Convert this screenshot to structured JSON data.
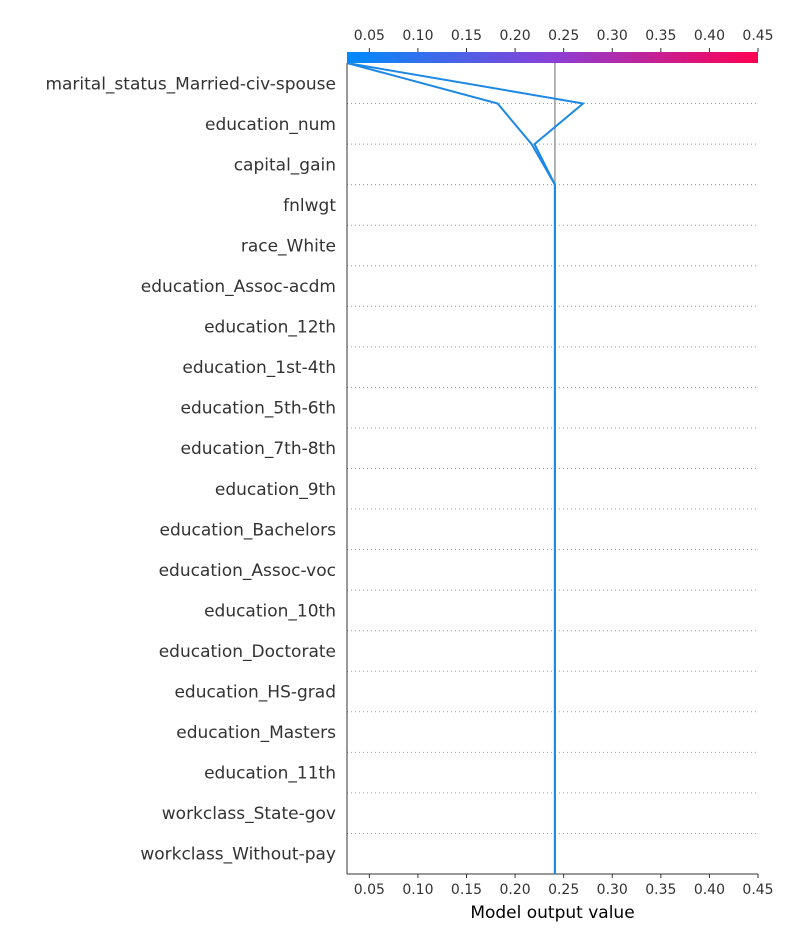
{
  "chart_data": {
    "type": "line",
    "subtype": "shap-decision-plot",
    "xlabel": "Model output value",
    "xlim": [
      0.027,
      0.45
    ],
    "xticks": [
      0.05,
      0.1,
      0.15,
      0.2,
      0.25,
      0.3,
      0.35,
      0.4,
      0.45
    ],
    "xtick_labels": [
      "0.05",
      "0.10",
      "0.15",
      "0.20",
      "0.25",
      "0.30",
      "0.35",
      "0.40",
      "0.45"
    ],
    "base_value": 0.241,
    "features": [
      "marital_status_Married-civ-spouse",
      "education_num",
      "capital_gain",
      "fnlwgt",
      "race_White",
      "education_Assoc-acdm",
      "education_12th",
      "education_1st-4th",
      "education_5th-6th",
      "education_7th-8th",
      "education_9th",
      "education_Bachelors",
      "education_Assoc-voc",
      "education_10th",
      "education_Doctorate",
      "education_HS-grad",
      "education_Masters",
      "education_11th",
      "workclass_State-gov",
      "workclass_Without-pay"
    ],
    "series": [
      {
        "values": [
          0.027,
          0.27,
          0.22,
          0.241,
          0.241,
          0.241,
          0.241,
          0.241,
          0.241,
          0.241,
          0.241,
          0.241,
          0.241,
          0.241,
          0.241,
          0.241,
          0.241,
          0.241,
          0.241,
          0.241,
          0.241
        ]
      },
      {
        "values": [
          0.027,
          0.182,
          0.217,
          0.241,
          0.241,
          0.241,
          0.241,
          0.241,
          0.241,
          0.241,
          0.241,
          0.241,
          0.241,
          0.241,
          0.241,
          0.241,
          0.241,
          0.241,
          0.241,
          0.241,
          0.241
        ]
      }
    ],
    "line_color": "#1e88e5",
    "base_line_color": "#999999",
    "colorbar": {
      "from": "#008bfb",
      "mid": "#8b3fd6",
      "to": "#ff0051"
    },
    "grid": "dotted horizontal"
  }
}
